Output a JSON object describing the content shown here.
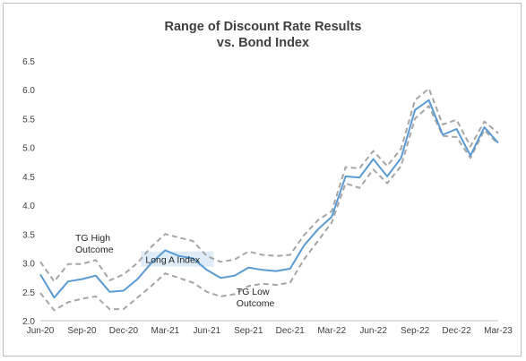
{
  "chart_data": {
    "type": "line",
    "title_line1": "Range of Discount Rate Results",
    "title_line2": "vs. Bond Index",
    "xlabel": "",
    "ylabel": "",
    "ylim": [
      2.0,
      6.5
    ],
    "y_ticks": [
      "2.0",
      "2.5",
      "3.0",
      "3.5",
      "4.0",
      "4.5",
      "5.0",
      "5.5",
      "6.0",
      "6.5"
    ],
    "x_tick_labels": [
      "Jun-20",
      "Sep-20",
      "Dec-20",
      "Mar-21",
      "Jun-21",
      "Sep-21",
      "Dec-21",
      "Mar-22",
      "Jun-22",
      "Sep-22",
      "Dec-22",
      "Mar-23"
    ],
    "months": [
      "Jun-20",
      "Jul-20",
      "Aug-20",
      "Sep-20",
      "Oct-20",
      "Nov-20",
      "Dec-20",
      "Jan-21",
      "Feb-21",
      "Mar-21",
      "Apr-21",
      "May-21",
      "Jun-21",
      "Jul-21",
      "Aug-21",
      "Sep-21",
      "Oct-21",
      "Nov-21",
      "Dec-21",
      "Jan-22",
      "Feb-22",
      "Mar-22",
      "Apr-22",
      "May-22",
      "Jun-22",
      "Jul-22",
      "Aug-22",
      "Sep-22",
      "Oct-22",
      "Nov-22",
      "Dec-22",
      "Jan-23",
      "Feb-23",
      "Mar-23"
    ],
    "grid": false,
    "series": [
      {
        "name": "Long A Index",
        "color": "#5b9bd5",
        "style": "solid",
        "values": [
          2.8,
          2.4,
          2.68,
          2.72,
          2.78,
          2.5,
          2.52,
          2.72,
          3.0,
          3.22,
          3.12,
          3.08,
          2.88,
          2.74,
          2.78,
          2.92,
          2.88,
          2.86,
          2.9,
          3.3,
          3.58,
          3.8,
          4.5,
          4.48,
          4.8,
          4.5,
          4.82,
          5.65,
          5.82,
          5.22,
          5.32,
          4.86,
          5.35,
          5.08
        ]
      },
      {
        "name": "TG High Outcome",
        "color": "#a6a6a6",
        "style": "dashed",
        "values": [
          3.02,
          2.68,
          2.98,
          2.98,
          3.05,
          2.7,
          2.8,
          3.0,
          3.28,
          3.5,
          3.44,
          3.38,
          3.12,
          3.02,
          3.06,
          3.2,
          3.14,
          3.12,
          3.14,
          3.48,
          3.74,
          3.9,
          4.66,
          4.64,
          4.94,
          4.68,
          4.98,
          5.82,
          6.02,
          5.4,
          5.48,
          5.02,
          5.45,
          5.25
        ]
      },
      {
        "name": "TG Low Outcome",
        "color": "#a6a6a6",
        "style": "dashed",
        "values": [
          2.48,
          2.18,
          2.32,
          2.38,
          2.42,
          2.2,
          2.2,
          2.4,
          2.6,
          2.82,
          2.74,
          2.66,
          2.5,
          2.42,
          2.46,
          2.6,
          2.64,
          2.62,
          2.66,
          3.06,
          3.38,
          3.7,
          4.38,
          4.3,
          4.62,
          4.38,
          4.68,
          5.5,
          5.72,
          5.2,
          5.18,
          4.82,
          5.3,
          5.06
        ]
      }
    ],
    "annotations": {
      "high_line1": "TG High",
      "high_line2": "Outcome",
      "index_label": "Long A Index",
      "low_line1": "TG Low",
      "low_line2": "Outcome"
    }
  }
}
